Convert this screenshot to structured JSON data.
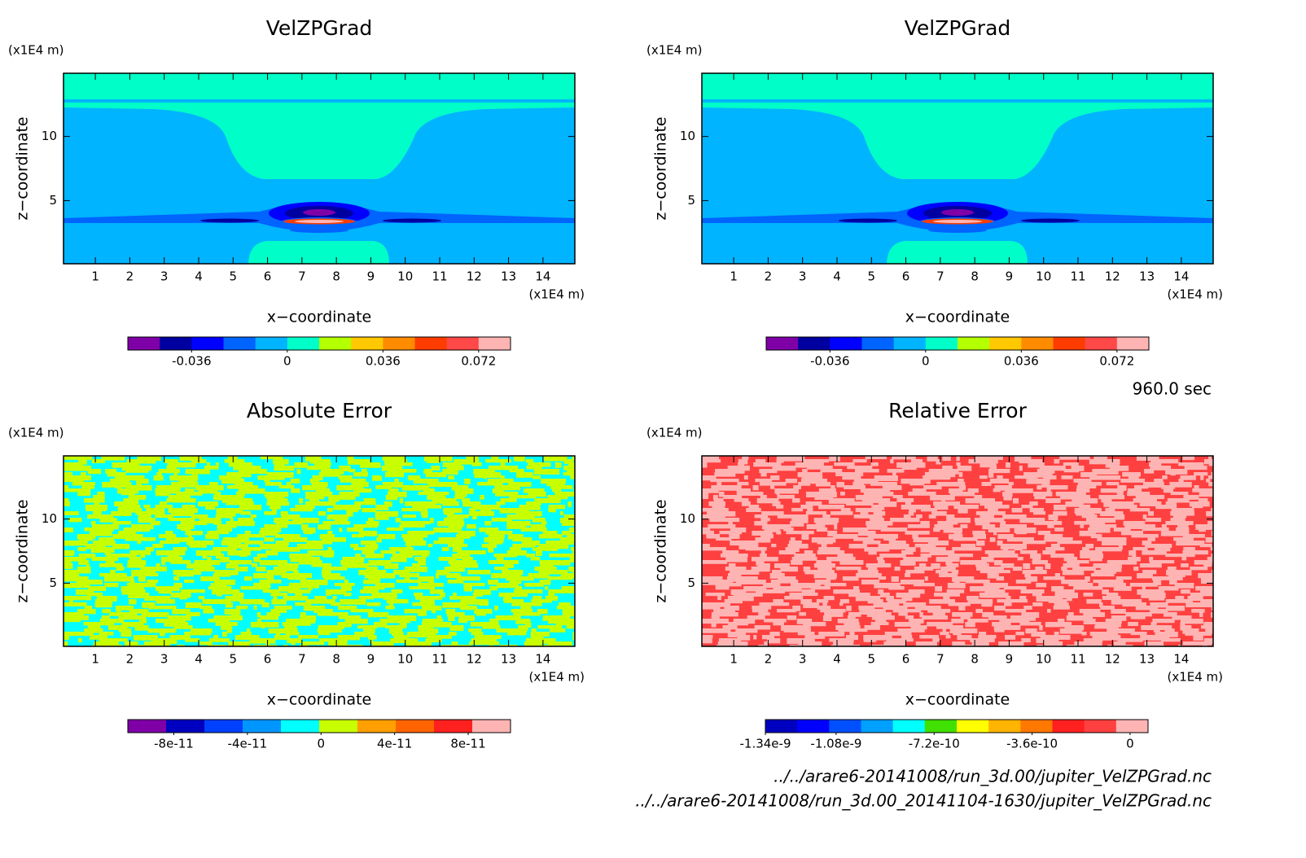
{
  "chart_data": [
    {
      "type": "contour",
      "title": "VelZPGrad",
      "x_label": "x−coordinate",
      "y_label": "z−coordinate",
      "x_unit": "(x1E4 m)",
      "y_unit": "(x1E4 m)",
      "xlim": [
        0.075,
        14.925
      ],
      "ylim": [
        0.075,
        14.925
      ],
      "xticks": [
        1,
        2,
        3,
        4,
        5,
        6,
        7,
        8,
        9,
        10,
        11,
        12,
        13,
        14
      ],
      "yticks": [
        5,
        10
      ],
      "colorbar": {
        "clim": [
          -0.06,
          0.084
        ],
        "ticks": [
          -0.036,
          0,
          0.036,
          0.072
        ],
        "colors": [
          "#8000a8",
          "#0000a0",
          "#0000ff",
          "#0064ff",
          "#00b4ff",
          "#00ffc8",
          "#b4ff00",
          "#ffc800",
          "#ff8c00",
          "#ff3c00",
          "#ff4848",
          "#ffb4b4"
        ]
      }
    },
    {
      "type": "contour",
      "title": "VelZPGrad",
      "x_label": "x−coordinate",
      "y_label": "z−coordinate",
      "x_unit": "(x1E4 m)",
      "y_unit": "(x1E4 m)",
      "xlim": [
        0.075,
        14.925
      ],
      "ylim": [
        0.075,
        14.925
      ],
      "xticks": [
        1,
        2,
        3,
        4,
        5,
        6,
        7,
        8,
        9,
        10,
        11,
        12,
        13,
        14
      ],
      "yticks": [
        5,
        10
      ],
      "colorbar": {
        "clim": [
          -0.06,
          0.084
        ],
        "ticks": [
          -0.036,
          0,
          0.036,
          0.072
        ],
        "colors": [
          "#8000a8",
          "#0000a0",
          "#0000ff",
          "#0064ff",
          "#00b4ff",
          "#00ffc8",
          "#b4ff00",
          "#ffc800",
          "#ff8c00",
          "#ff3c00",
          "#ff4848",
          "#ffb4b4"
        ]
      }
    },
    {
      "type": "contour",
      "title": "Absolute Error",
      "x_label": "x−coordinate",
      "y_label": "z−coordinate",
      "x_unit": "(x1E4 m)",
      "y_unit": "(x1E4 m)",
      "xlim": [
        0.075,
        14.925
      ],
      "ylim": [
        0.075,
        14.925
      ],
      "xticks": [
        1,
        2,
        3,
        4,
        5,
        6,
        7,
        8,
        9,
        10,
        11,
        12,
        13,
        14
      ],
      "yticks": [
        5,
        10
      ],
      "colorbar": {
        "clim": [
          -1.05e-10,
          1.03e-10
        ],
        "ticks": [
          -8e-11,
          -4e-11,
          0,
          4e-11,
          8e-11
        ],
        "colors": [
          "#8000a8",
          "#0000c0",
          "#0040ff",
          "#0096ff",
          "#00ffff",
          "#c8ff00",
          "#ffa000",
          "#ff6400",
          "#ff2020",
          "#ffb4b4"
        ]
      }
    },
    {
      "type": "contour",
      "title": "Relative Error",
      "x_label": "x−coordinate",
      "y_label": "z−coordinate",
      "x_unit": "(x1E4 m)",
      "y_unit": "(x1E4 m)",
      "xlim": [
        0.075,
        14.925
      ],
      "ylim": [
        0.075,
        14.925
      ],
      "xticks": [
        1,
        2,
        3,
        4,
        5,
        6,
        7,
        8,
        9,
        10,
        11,
        12,
        13,
        14
      ],
      "yticks": [
        5,
        10
      ],
      "colorbar": {
        "clim": [
          -1.34e-09,
          6.6e-11
        ],
        "ticks": [
          -1.34e-09,
          -1.08e-09,
          -7.2e-10,
          -3.6e-10,
          0
        ],
        "colors": [
          "#0000c0",
          "#0000ff",
          "#0050ff",
          "#00a0ff",
          "#00ffff",
          "#40e000",
          "#ffff00",
          "#ffb400",
          "#ff7800",
          "#ff2020",
          "#ff4040",
          "#ffb4b4"
        ]
      }
    }
  ],
  "annotations": {
    "time": "960.0 sec",
    "files": [
      "../../arare6-20141008/run_3d.00/jupiter_VelZPGrad.nc",
      "../../arare6-20141008/run_3d.00_20141104-1630/jupiter_VelZPGrad.nc"
    ]
  }
}
